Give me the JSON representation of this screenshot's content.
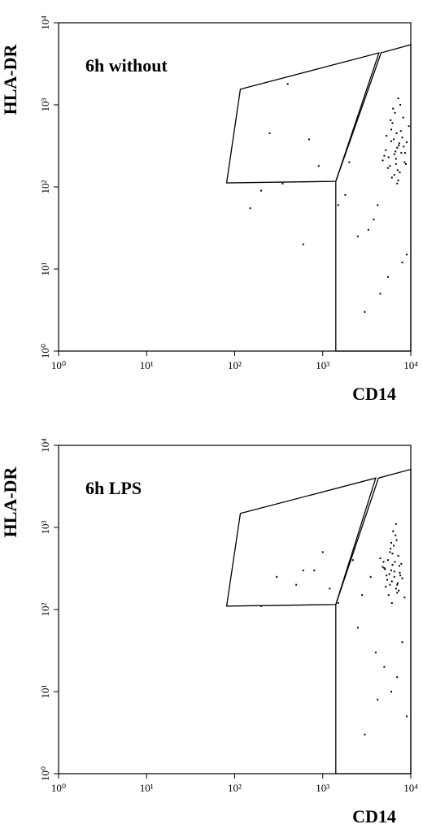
{
  "chart_data": [
    {
      "type": "scatter",
      "annotation": "6h without",
      "xlabel": "CD14",
      "ylabel": "HLA-DR",
      "xlog": true,
      "ylog": true,
      "color": "#000000",
      "xlim": [
        1,
        10000
      ],
      "ylim": [
        1,
        10000
      ],
      "xticks": [
        {
          "value": 1,
          "label": "10⁰"
        },
        {
          "value": 10,
          "label": "10¹"
        },
        {
          "value": 100,
          "label": "10²"
        },
        {
          "value": 1000,
          "label": "10³"
        },
        {
          "value": 10000,
          "label": "10⁴"
        }
      ],
      "yticks": [
        {
          "value": 1,
          "label": "10⁰"
        },
        {
          "value": 10,
          "label": "10¹"
        },
        {
          "value": 100,
          "label": "10²"
        },
        {
          "value": 1000,
          "label": "10³"
        },
        {
          "value": 10000,
          "label": "10⁴"
        }
      ],
      "gates": [
        {
          "x": [
            81,
            116,
            4350,
            1407
          ],
          "y": [
            112,
            1550,
            4300,
            117
          ]
        },
        {
          "x": [
            1407,
            1407,
            4600,
            10000,
            10000
          ],
          "y": [
            1,
            117,
            4300,
            5400,
            1
          ]
        }
      ],
      "x": [
        6500,
        7000,
        5800,
        8000,
        7500,
        6200,
        6800,
        9000,
        5200,
        7200,
        6000,
        8500,
        6600,
        7800,
        5500,
        6900,
        7300,
        6100,
        8200,
        5000,
        7600,
        6400,
        4800,
        9500,
        7100,
        6700,
        5900,
        8800,
        6300,
        7400,
        5600,
        6500,
        7700,
        8300,
        6000,
        7000,
        5300,
        8600,
        6800,
        7200,
        4200,
        3800,
        2500,
        1800,
        600,
        350,
        200,
        150,
        250,
        900,
        1500,
        3000,
        5500,
        8000,
        9000,
        4500,
        2000,
        700,
        400,
        3300
      ],
      "y": [
        250,
        300,
        180,
        400,
        150,
        600,
        220,
        350,
        280,
        120,
        500,
        200,
        800,
        260,
        170,
        450,
        320,
        130,
        700,
        240,
        1000,
        380,
        210,
        550,
        160,
        270,
        650,
        190,
        900,
        340,
        230,
        140,
        480,
        310,
        360,
        110,
        420,
        260,
        190,
        1200,
        60,
        40,
        25,
        80,
        20,
        110,
        90,
        55,
        450,
        180,
        60,
        3,
        8,
        12,
        15,
        5,
        200,
        380,
        1800,
        30
      ]
    },
    {
      "type": "scatter",
      "annotation": "6h LPS",
      "xlabel": "CD14",
      "ylabel": "HLA-DR",
      "xlog": true,
      "ylog": true,
      "color": "#000000",
      "xlim": [
        1,
        10000
      ],
      "ylim": [
        1,
        10000
      ],
      "xticks": [
        {
          "value": 1,
          "label": "10⁰"
        },
        {
          "value": 10,
          "label": "10¹"
        },
        {
          "value": 100,
          "label": "10²"
        },
        {
          "value": 1000,
          "label": "10³"
        },
        {
          "value": 10000,
          "label": "10⁴"
        }
      ],
      "yticks": [
        {
          "value": 1,
          "label": "10⁰"
        },
        {
          "value": 10,
          "label": "10¹"
        },
        {
          "value": 100,
          "label": "10²"
        },
        {
          "value": 1000,
          "label": "10³"
        },
        {
          "value": 10000,
          "label": "10⁴"
        }
      ],
      "gates": [
        {
          "x": [
            81,
            116,
            4000,
            1407
          ],
          "y": [
            110,
            1480,
            4000,
            115
          ]
        },
        {
          "x": [
            1407,
            1407,
            4300,
            10000,
            10000
          ],
          "y": [
            1,
            115,
            4000,
            5100,
            1
          ]
        }
      ],
      "x": [
        6000,
        6500,
        5500,
        7000,
        6200,
        5800,
        6800,
        7500,
        5000,
        6400,
        5600,
        7200,
        6100,
        6900,
        5300,
        6600,
        7300,
        5900,
        8000,
        4800,
        6300,
        7100,
        4500,
        8500,
        5700,
        6700,
        5200,
        7800,
        6000,
        6500,
        5400,
        6200,
        7000,
        5100,
        6800,
        7600,
        5800,
        6100,
        4900,
        7400,
        3500,
        2800,
        2200,
        1500,
        800,
        500,
        300,
        200,
        1200,
        2500,
        4000,
        6000,
        7000,
        9000,
        5000,
        4200,
        3000,
        600,
        1000,
        8000
      ],
      "y": [
        300,
        250,
        400,
        200,
        350,
        500,
        180,
        280,
        320,
        600,
        150,
        450,
        220,
        700,
        260,
        380,
        170,
        550,
        240,
        330,
        900,
        210,
        420,
        140,
        270,
        800,
        190,
        360,
        650,
        290,
        230,
        480,
        160,
        310,
        1100,
        260,
        200,
        120,
        380,
        340,
        250,
        150,
        400,
        120,
        300,
        200,
        250,
        110,
        180,
        60,
        30,
        10,
        15,
        5,
        20,
        8,
        3,
        300,
        500,
        40
      ]
    }
  ]
}
